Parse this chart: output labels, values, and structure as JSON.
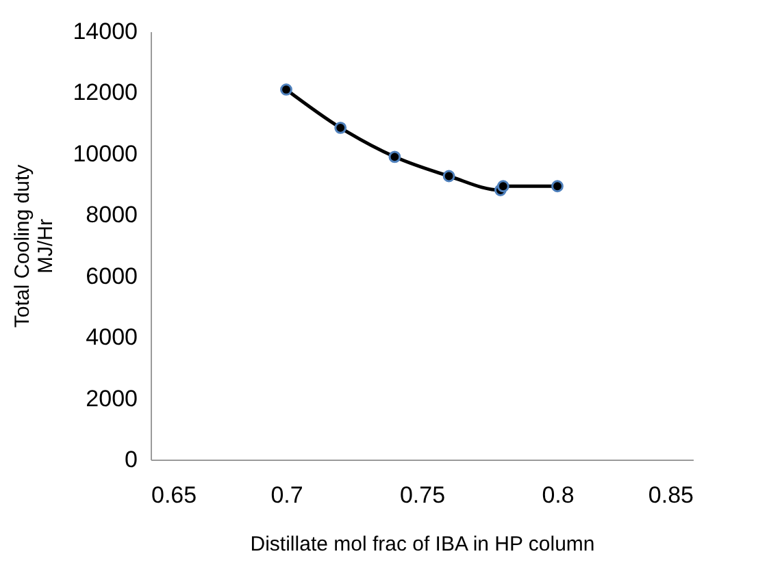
{
  "chart_data": {
    "type": "line",
    "xlabel": "Distillate mol frac of IBA in HP column",
    "ylabel": "Total Cooling duty\nMJ/Hr",
    "x": [
      0.7,
      0.72,
      0.74,
      0.76,
      0.779,
      0.78,
      0.8
    ],
    "series": [
      {
        "color": "#000000",
        "values": [
          12100,
          10850,
          9900,
          9270,
          8810,
          8940,
          8940
        ]
      }
    ],
    "marker": "circle",
    "line_style": "solid",
    "grid": false,
    "legend": false,
    "xlim": [
      0.65,
      0.85
    ],
    "xticks": [
      0.65,
      0.7,
      0.75,
      0.8,
      0.85
    ],
    "ylim": [
      0,
      14000
    ],
    "yticks": [
      0,
      2000,
      4000,
      6000,
      8000,
      10000,
      12000,
      14000
    ]
  }
}
